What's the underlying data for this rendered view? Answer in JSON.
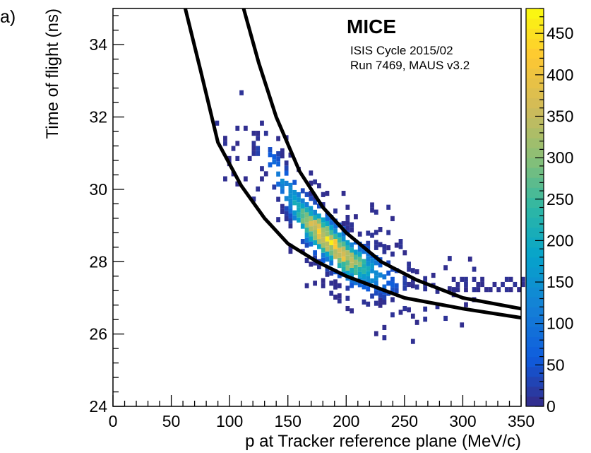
{
  "panel_label": "a)",
  "chart_data": {
    "type": "heatmap",
    "title": "",
    "xlabel": "p at Tracker reference plane (MeV/c)",
    "ylabel": "Time of flight (ns)",
    "xlim": [
      0,
      350
    ],
    "ylim": [
      24,
      35
    ],
    "x_ticks": [
      0,
      50,
      100,
      150,
      200,
      250,
      300,
      350
    ],
    "y_ticks": [
      24,
      26,
      28,
      30,
      32,
      34
    ],
    "colorbar": {
      "min": 0,
      "max": 480,
      "ticks": [
        0,
        50,
        100,
        150,
        200,
        250,
        300,
        350,
        400,
        450
      ]
    },
    "annotations": {
      "experiment": "MICE",
      "cycle": "ISIS Cycle 2015/02",
      "run": "Run 7469, MAUS v3.2"
    },
    "band_centre": {
      "description_points": [
        [
          130,
          30.9
        ],
        [
          160,
          29.2
        ],
        [
          180,
          28.6
        ],
        [
          200,
          28.0
        ],
        [
          230,
          27.5
        ],
        [
          260,
          27.2
        ],
        [
          290,
          27.0
        ]
      ]
    },
    "cut_curves": [
      {
        "points": [
          [
            62,
            35.0
          ],
          [
            75,
            33.3
          ],
          [
            90,
            31.3
          ],
          [
            110,
            30.1
          ],
          [
            130,
            29.2
          ],
          [
            150,
            28.5
          ],
          [
            175,
            28.0
          ],
          [
            200,
            27.6
          ],
          [
            250,
            27.0
          ],
          [
            300,
            26.7
          ],
          [
            350,
            26.45
          ]
        ]
      },
      {
        "points": [
          [
            112,
            35.0
          ],
          [
            125,
            33.5
          ],
          [
            140,
            32.0
          ],
          [
            160,
            30.5
          ],
          [
            180,
            29.5
          ],
          [
            200,
            28.8
          ],
          [
            230,
            28.0
          ],
          [
            260,
            27.5
          ],
          [
            300,
            27.0
          ],
          [
            350,
            26.7
          ]
        ]
      }
    ]
  }
}
